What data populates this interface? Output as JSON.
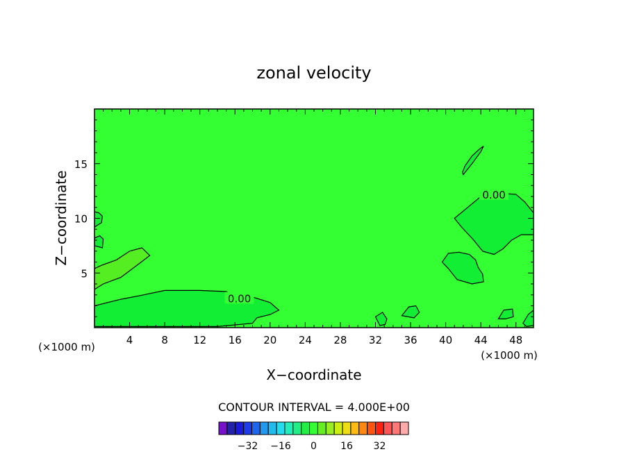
{
  "chart_data": {
    "type": "contour",
    "title": "zonal velocity",
    "xlabel": "X−coordinate",
    "ylabel": "Z−coordinate",
    "x_units": "(×1000 m)",
    "y_units": "(×1000 m)",
    "xlim": [
      0,
      50
    ],
    "ylim": [
      0,
      20
    ],
    "xticks": [
      4,
      8,
      12,
      16,
      20,
      24,
      28,
      32,
      36,
      40,
      44,
      48
    ],
    "xtick_labels": [
      "4",
      "8",
      "12",
      "16",
      "20",
      "24",
      "28",
      "32",
      "36",
      "40",
      "44",
      "48"
    ],
    "yticks": [
      5,
      10,
      15
    ],
    "ytick_labels": [
      "5",
      "10",
      "15"
    ],
    "contour_interval_text": "CONTOUR INTERVAL = 4.000E+00",
    "contour_labels": [
      {
        "x": 16.5,
        "y": 2.7,
        "text": "0.00"
      },
      {
        "x": 45.5,
        "y": 12.2,
        "text": "0.00"
      }
    ],
    "background_color": "#33ff33",
    "regions": [
      {
        "level_color": "#11ee33",
        "points": [
          [
            0,
            0.2
          ],
          [
            0,
            2.0
          ],
          [
            3,
            2.6
          ],
          [
            5,
            2.9
          ],
          [
            8,
            3.4
          ],
          [
            12,
            3.4
          ],
          [
            15,
            3.3
          ],
          [
            16.5,
            2.8
          ],
          [
            18,
            2.8
          ],
          [
            20,
            2.3
          ],
          [
            21,
            1.6
          ],
          [
            20,
            1.2
          ],
          [
            18.5,
            0.9
          ],
          [
            18,
            0.4
          ],
          [
            14,
            0.1
          ],
          [
            0,
            0.1
          ]
        ]
      },
      {
        "level_color": "#55ee22",
        "points": [
          [
            0,
            3.5
          ],
          [
            1,
            4.0
          ],
          [
            3,
            4.6
          ],
          [
            5,
            5.8
          ],
          [
            6.3,
            6.6
          ],
          [
            5.4,
            7.3
          ],
          [
            4,
            7.0
          ],
          [
            2.5,
            6.2
          ],
          [
            0.8,
            5.7
          ],
          [
            0,
            5.4
          ]
        ]
      },
      {
        "level_color": "#11ee33",
        "points": [
          [
            41,
            10
          ],
          [
            42.5,
            11.0
          ],
          [
            44,
            12.0
          ],
          [
            46,
            12.3
          ],
          [
            48,
            12.2
          ],
          [
            49,
            11.5
          ],
          [
            50,
            10.5
          ],
          [
            50,
            8.5
          ],
          [
            48.6,
            8.5
          ],
          [
            47.5,
            8.0
          ],
          [
            46.5,
            7.2
          ],
          [
            45.5,
            6.7
          ],
          [
            44.2,
            7.0
          ],
          [
            43.2,
            8.0
          ],
          [
            41.8,
            9.2
          ]
        ]
      },
      {
        "level_color": "#11ee33",
        "points": [
          [
            39.6,
            6.0
          ],
          [
            40.3,
            5.4
          ],
          [
            41.3,
            4.4
          ],
          [
            43,
            4.0
          ],
          [
            44.3,
            4.2
          ],
          [
            44.2,
            4.9
          ],
          [
            43.7,
            5.5
          ],
          [
            43.4,
            6.2
          ],
          [
            42.7,
            6.7
          ],
          [
            41.5,
            6.9
          ],
          [
            40.3,
            6.8
          ]
        ]
      },
      {
        "level_color": "#11ee33",
        "points": [
          [
            42,
            14.0
          ],
          [
            43,
            15.0
          ],
          [
            44,
            16.1
          ],
          [
            44.3,
            16.6
          ],
          [
            43.8,
            16.3
          ],
          [
            43.0,
            15.7
          ],
          [
            42.2,
            14.8
          ],
          [
            41.9,
            14.2
          ]
        ]
      },
      {
        "level_color": "#11ee33",
        "points": [
          [
            0,
            9.2
          ],
          [
            0.8,
            9.6
          ],
          [
            0.9,
            10.2
          ],
          [
            0.5,
            10.5
          ],
          [
            0,
            10.6
          ]
        ]
      },
      {
        "level_color": "#11ee33",
        "points": [
          [
            0,
            7.5
          ],
          [
            0.9,
            7.3
          ],
          [
            1.0,
            8.1
          ],
          [
            0.6,
            8.4
          ],
          [
            0,
            8.2
          ]
        ]
      },
      {
        "level_color": "#11ee33",
        "points": [
          [
            32.5,
            0.2
          ],
          [
            32,
            1.0
          ],
          [
            32.8,
            1.4
          ],
          [
            33.3,
            0.8
          ],
          [
            33.1,
            0.3
          ]
        ]
      },
      {
        "level_color": "#11ee33",
        "points": [
          [
            35.0,
            1.1
          ],
          [
            35.8,
            1.9
          ],
          [
            36.6,
            2.0
          ],
          [
            37,
            1.4
          ],
          [
            36.4,
            0.9
          ]
        ]
      },
      {
        "level_color": "#11ee33",
        "points": [
          [
            46,
            0.8
          ],
          [
            46.6,
            1.6
          ],
          [
            47.6,
            1.7
          ],
          [
            47.7,
            1.0
          ],
          [
            46.8,
            0.8
          ]
        ]
      },
      {
        "level_color": "#11ee33",
        "points": [
          [
            48.8,
            0.4
          ],
          [
            49.4,
            1.2
          ],
          [
            50,
            1.6
          ],
          [
            50,
            0.2
          ],
          [
            49.2,
            0.1
          ]
        ]
      }
    ],
    "colorbar": {
      "colors": [
        "#7711cc",
        "#2222aa",
        "#1a1adb",
        "#1d3be6",
        "#1f66ee",
        "#2299ee",
        "#22bbee",
        "#22ddee",
        "#22eebb",
        "#22ee88",
        "#22ee44",
        "#33ff33",
        "#66ee22",
        "#99ee22",
        "#ccee11",
        "#eedd11",
        "#ffbb11",
        "#ff8811",
        "#ff5511",
        "#ff2211",
        "#ff5555",
        "#ff7777",
        "#ffaaaa"
      ],
      "tick_values": [
        -32,
        -16,
        0,
        16,
        32
      ],
      "tick_labels": [
        "−32",
        "−16",
        "0",
        "16",
        "32"
      ]
    }
  }
}
